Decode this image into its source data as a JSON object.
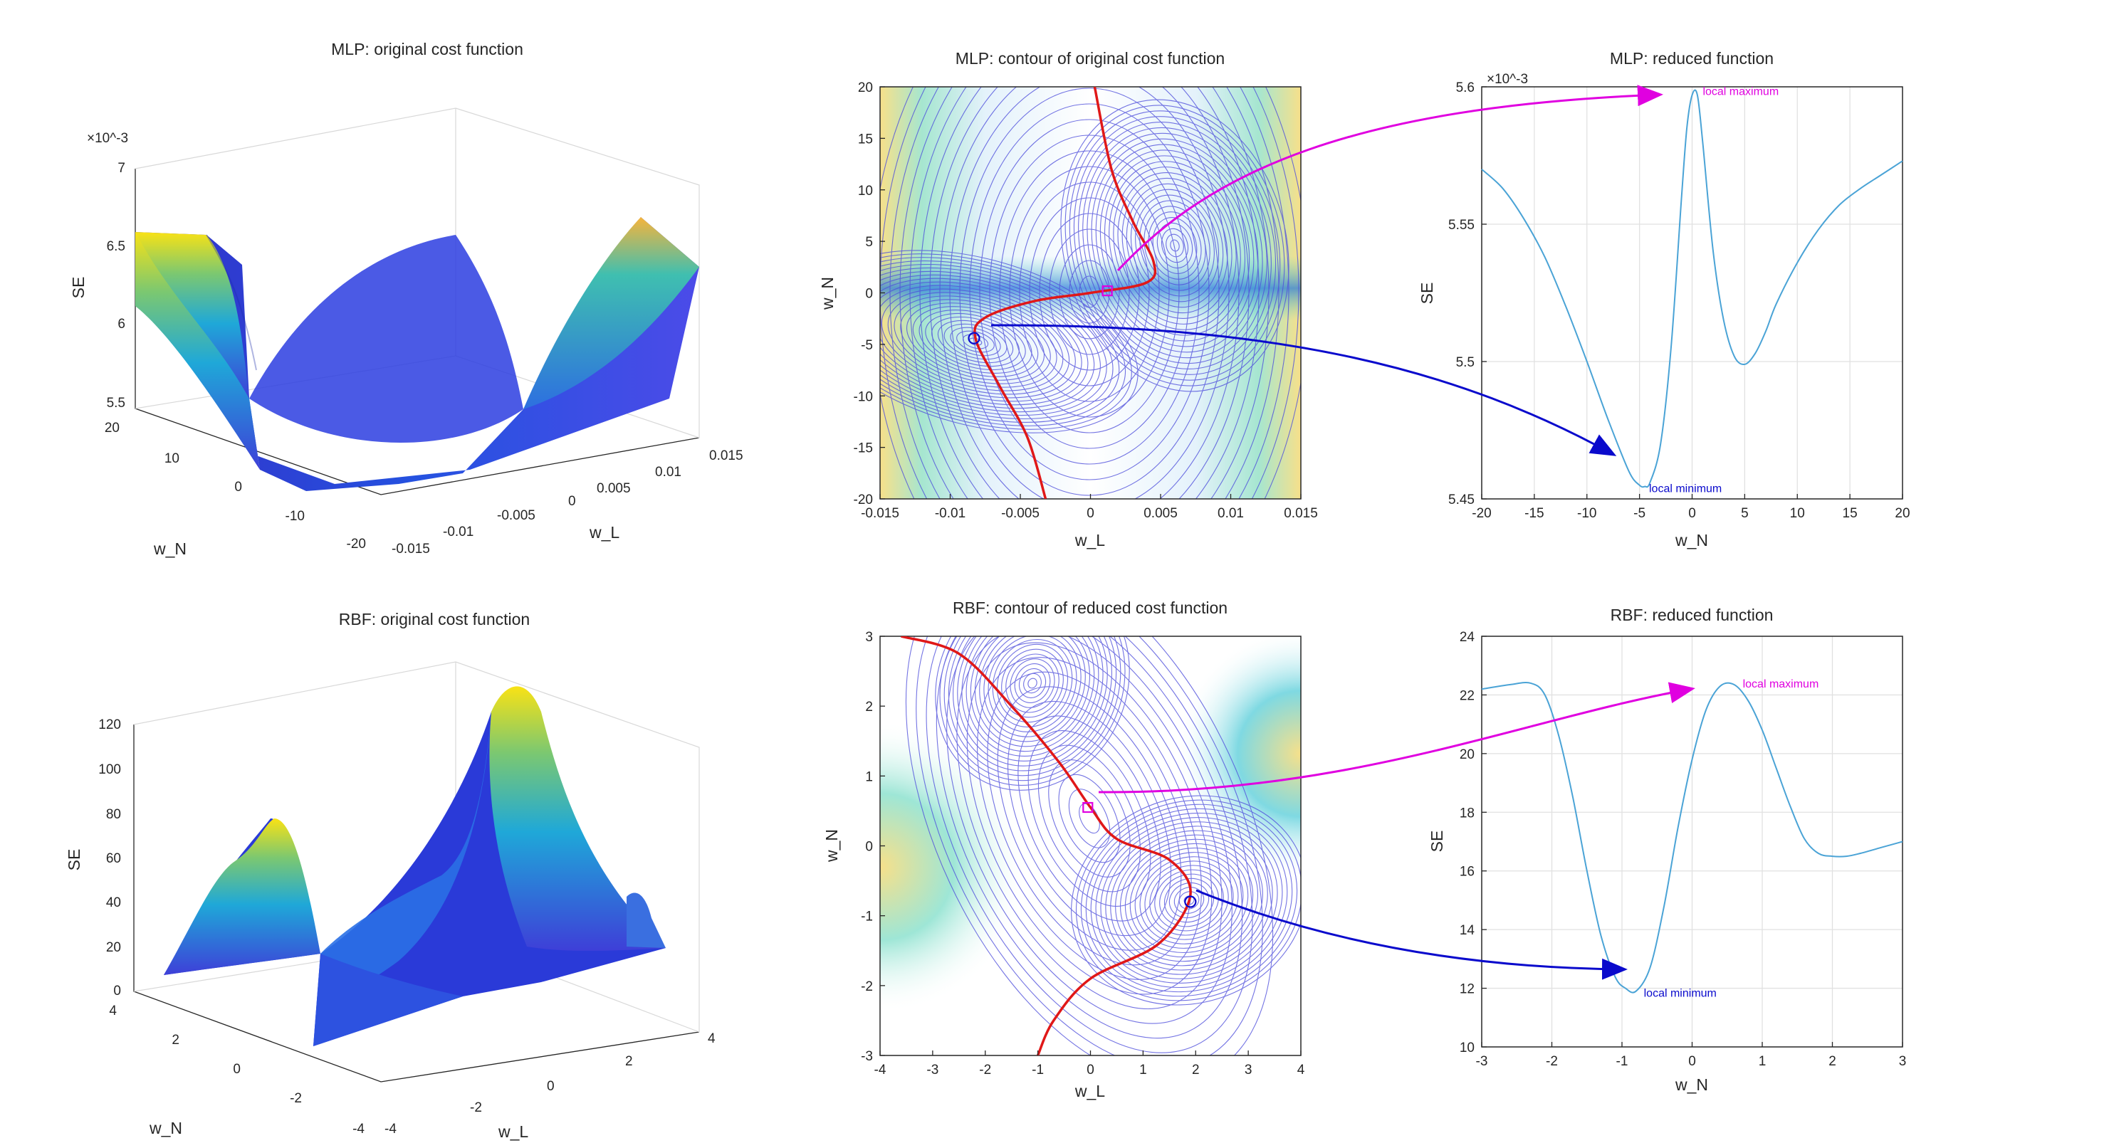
{
  "colors": {
    "surface_low": "#3e26a8",
    "surface_mid": "#1fa8d8",
    "surface_high": "#f9e215",
    "contour": "#4a4ad8",
    "red_curve": "#e01818",
    "reduced_line": "#4aa3d6",
    "maximum_marker": "#e000e0",
    "minimum_marker": "#0a0acc"
  },
  "chart_data": [
    {
      "id": "mlp_surface",
      "type": "surface",
      "title": "MLP: original cost function",
      "xlabel": "w_L",
      "ylabel": "w_N",
      "zlabel": "SE",
      "z_exponent": "×10^-3",
      "xlim": [
        -0.015,
        0.015
      ],
      "ylim": [
        -20,
        20
      ],
      "zlim": [
        5.5,
        7
      ],
      "xticks": [
        "-0.015",
        "-0.01",
        "-0.005",
        "0",
        "0.005",
        "0.01",
        "0.015"
      ],
      "yticks": [
        "-20",
        "-10",
        "0",
        "10",
        "20"
      ],
      "zticks": [
        "5.5",
        "6",
        "6.5",
        "7"
      ],
      "grid": true
    },
    {
      "id": "mlp_contour",
      "type": "contour",
      "title": "MLP: contour of original cost function",
      "xlabel": "w_L",
      "ylabel": "w_N",
      "xlim": [
        -0.015,
        0.015
      ],
      "ylim": [
        -20,
        20
      ],
      "xticks": [
        "-0.015",
        "-0.01",
        "-0.005",
        "0",
        "0.005",
        "0.01",
        "0.015"
      ],
      "yticks": [
        "-20",
        "-15",
        "-10",
        "-5",
        "0",
        "5",
        "10",
        "15",
        "20"
      ],
      "ridge_curve": [
        [
          -0.0032,
          -20
        ],
        [
          -0.0045,
          -14
        ],
        [
          -0.0065,
          -9
        ],
        [
          -0.0082,
          -4.4
        ],
        [
          -0.0075,
          -2.4
        ],
        [
          -0.004,
          -0.8
        ],
        [
          0,
          0
        ],
        [
          0.004,
          1
        ],
        [
          0.0045,
          3
        ],
        [
          0.003,
          7
        ],
        [
          0.0015,
          12
        ],
        [
          0.0003,
          20
        ]
      ],
      "saddle_point": [
        0.0012,
        0.2
      ],
      "minimum_point": [
        -0.0083,
        -4.4
      ]
    },
    {
      "id": "mlp_reduced",
      "type": "line",
      "title": "MLP: reduced function",
      "xlabel": "w_N",
      "ylabel": "SE",
      "z_exponent": "×10^-3",
      "xlim": [
        -20,
        20
      ],
      "ylim": [
        5.45,
        5.6
      ],
      "xticks": [
        "-20",
        "-15",
        "-10",
        "-5",
        "0",
        "5",
        "10",
        "15",
        "20"
      ],
      "yticks": [
        "5.45",
        "5.5",
        "5.55",
        "5.6"
      ],
      "grid": true,
      "x": [
        -20,
        -18,
        -16,
        -14,
        -12,
        -10,
        -8,
        -6,
        -5,
        -4.5,
        -4,
        -3,
        -2,
        -1,
        -0.5,
        0,
        0.5,
        1,
        2,
        3,
        4,
        5,
        6,
        7,
        8,
        10,
        12,
        14,
        16,
        18,
        20
      ],
      "y": [
        5.57,
        5.563,
        5.552,
        5.538,
        5.52,
        5.5,
        5.479,
        5.46,
        5.455,
        5.4545,
        5.456,
        5.47,
        5.505,
        5.56,
        5.585,
        5.597,
        5.597,
        5.58,
        5.54,
        5.515,
        5.502,
        5.499,
        5.503,
        5.511,
        5.521,
        5.536,
        5.548,
        5.557,
        5.563,
        5.568,
        5.573
      ],
      "annotations": [
        {
          "text": "local maximum",
          "x": 0.2,
          "y": 5.598
        },
        {
          "text": "local minimum",
          "x": -4.5,
          "y": 5.4545
        }
      ]
    },
    {
      "id": "rbf_surface",
      "type": "surface",
      "title": "RBF: original cost function",
      "xlabel": "w_L",
      "ylabel": "w_N",
      "zlabel": "SE",
      "xlim": [
        -4,
        4
      ],
      "ylim": [
        -4,
        4
      ],
      "zlim": [
        0,
        120
      ],
      "xticks": [
        "-4",
        "-2",
        "0",
        "2",
        "4"
      ],
      "yticks": [
        "-4",
        "-2",
        "0",
        "2",
        "4"
      ],
      "zticks": [
        "0",
        "20",
        "40",
        "60",
        "80",
        "100",
        "120"
      ],
      "grid": true
    },
    {
      "id": "rbf_contour",
      "type": "contour",
      "title": "RBF: contour of reduced cost function",
      "xlabel": "w_L",
      "ylabel": "w_N",
      "xlim": [
        -4,
        4
      ],
      "ylim": [
        -3,
        3
      ],
      "xticks": [
        "-4",
        "-3",
        "-2",
        "-1",
        "0",
        "1",
        "2",
        "3",
        "4"
      ],
      "yticks": [
        "-3",
        "-2",
        "-1",
        "0",
        "1",
        "2",
        "3"
      ],
      "ridge_curve": [
        [
          -3.6,
          3
        ],
        [
          -2.5,
          2.75
        ],
        [
          -1.5,
          2
        ],
        [
          -0.6,
          1.2
        ],
        [
          0,
          0.55
        ],
        [
          0.5,
          0.1
        ],
        [
          1.5,
          -0.2
        ],
        [
          1.9,
          -0.7
        ],
        [
          1.3,
          -1.4
        ],
        [
          0,
          -1.9
        ],
        [
          -0.7,
          -2.5
        ],
        [
          -1,
          -3
        ]
      ],
      "saddle_point": [
        -0.05,
        0.55
      ],
      "minimum_point": [
        1.9,
        -0.8
      ]
    },
    {
      "id": "rbf_reduced",
      "type": "line",
      "title": "RBF: reduced function",
      "xlabel": "w_N",
      "ylabel": "SE",
      "xlim": [
        -3,
        3
      ],
      "ylim": [
        10,
        24
      ],
      "xticks": [
        "-3",
        "-2",
        "-1",
        "0",
        "1",
        "2",
        "3"
      ],
      "yticks": [
        "10",
        "12",
        "14",
        "16",
        "18",
        "20",
        "22",
        "24"
      ],
      "grid": true,
      "x": [
        -3,
        -2.6,
        -2.3,
        -2.1,
        -1.9,
        -1.7,
        -1.5,
        -1.3,
        -1.1,
        -0.95,
        -0.8,
        -0.6,
        -0.4,
        -0.2,
        0,
        0.2,
        0.4,
        0.6,
        0.8,
        1.0,
        1.2,
        1.4,
        1.6,
        1.8,
        2.0,
        2.2,
        2.4,
        2.7,
        3.0
      ],
      "y": [
        22.2,
        22.35,
        22.4,
        22.0,
        20.6,
        18.5,
        16.0,
        13.8,
        12.4,
        12.0,
        11.9,
        12.7,
        14.8,
        17.5,
        19.8,
        21.5,
        22.3,
        22.35,
        21.8,
        20.8,
        19.5,
        18.2,
        17.1,
        16.6,
        16.5,
        16.5,
        16.6,
        16.8,
        17.0
      ],
      "annotations": [
        {
          "text": "local maximum",
          "x": 0.6,
          "y": 22.35
        },
        {
          "text": "local minimum",
          "x": -0.75,
          "y": 11.9
        }
      ]
    }
  ]
}
